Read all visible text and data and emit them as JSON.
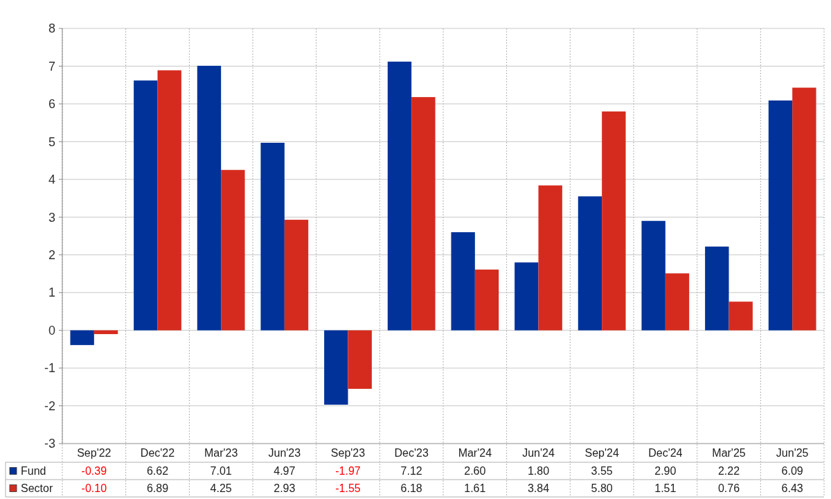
{
  "chart_data": {
    "type": "bar",
    "categories": [
      "Sep'22",
      "Dec'22",
      "Mar'23",
      "Jun'23",
      "Sep'23",
      "Dec'23",
      "Mar'24",
      "Jun'24",
      "Sep'24",
      "Dec'24",
      "Mar'25",
      "Jun'25"
    ],
    "series": [
      {
        "name": "Fund",
        "color": "#003299",
        "values": [
          -0.39,
          6.62,
          7.01,
          4.97,
          -1.97,
          7.12,
          2.6,
          1.8,
          3.55,
          2.9,
          2.22,
          6.09
        ],
        "value_labels": [
          "-0.39",
          "6.62",
          "7.01",
          "4.97",
          "-1.97",
          "7.12",
          "2.60",
          "1.80",
          "3.55",
          "2.90",
          "2.22",
          "6.09"
        ]
      },
      {
        "name": "Sector",
        "color": "#d52b1e",
        "values": [
          -0.1,
          6.89,
          4.25,
          2.93,
          -1.55,
          6.18,
          1.61,
          3.84,
          5.8,
          1.51,
          0.76,
          6.43
        ],
        "value_labels": [
          "-0.10",
          "6.89",
          "4.25",
          "2.93",
          "-1.55",
          "6.18",
          "1.61",
          "3.84",
          "5.80",
          "1.51",
          "0.76",
          "6.43"
        ]
      }
    ],
    "ylim": [
      -3,
      8
    ],
    "yticks": [
      -3,
      -2,
      -1,
      0,
      1,
      2,
      3,
      4,
      5,
      6,
      7,
      8
    ],
    "grid": true,
    "legend": "bottom left"
  }
}
